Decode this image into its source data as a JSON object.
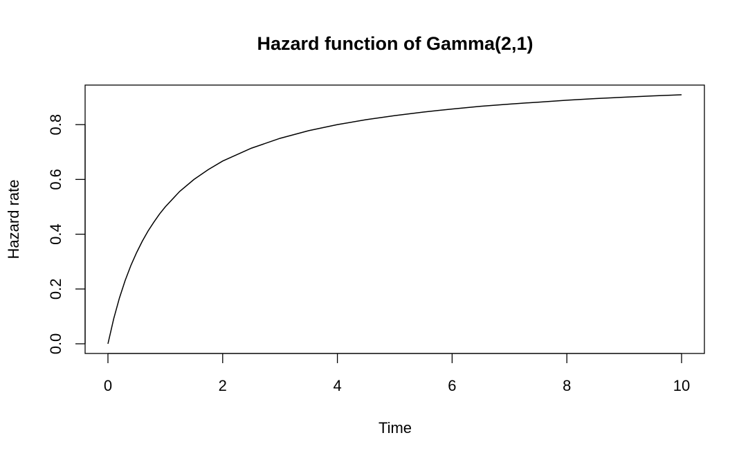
{
  "chart_data": {
    "type": "line",
    "title": "Hazard function of Gamma(2,1)",
    "xlabel": "Time",
    "ylabel": "Hazard rate",
    "xlim": [
      0,
      10
    ],
    "ylim": [
      0,
      0.909
    ],
    "x_ticks": [
      0,
      2,
      4,
      6,
      8,
      10
    ],
    "x_tick_labels": [
      "0",
      "2",
      "4",
      "6",
      "8",
      "10"
    ],
    "y_ticks": [
      0,
      0.2,
      0.4,
      0.6,
      0.8
    ],
    "y_tick_labels": [
      "0.0",
      "0.2",
      "0.4",
      "0.6",
      "0.8"
    ],
    "grid": false,
    "legend": "none",
    "line_color": "#000000",
    "series": [
      {
        "x": [
          0,
          0.1,
          0.2,
          0.3,
          0.4,
          0.5,
          0.6,
          0.7,
          0.8,
          0.9,
          1,
          1.25,
          1.5,
          1.75,
          2,
          2.5,
          3,
          3.5,
          4,
          4.5,
          5,
          5.5,
          6,
          6.5,
          7,
          7.5,
          8,
          8.5,
          9,
          9.5,
          10
        ],
        "y": [
          0,
          0.091,
          0.167,
          0.231,
          0.286,
          0.333,
          0.375,
          0.412,
          0.444,
          0.474,
          0.5,
          0.556,
          0.6,
          0.636,
          0.667,
          0.714,
          0.75,
          0.778,
          0.8,
          0.818,
          0.833,
          0.846,
          0.857,
          0.867,
          0.875,
          0.882,
          0.889,
          0.895,
          0.9,
          0.905,
          0.909
        ]
      }
    ]
  }
}
